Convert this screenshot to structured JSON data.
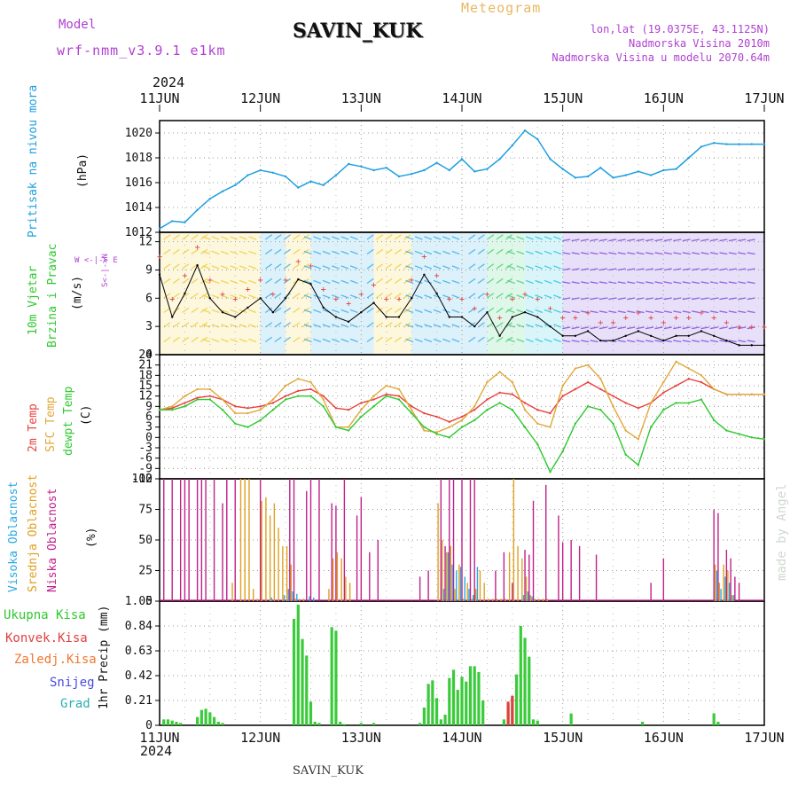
{
  "header": {
    "model_label": "Model",
    "model_name": "wrf-nmm_v3.9.1 e1km",
    "station_title": "SAVIN_KUK",
    "meteogram_label": "Meteogram",
    "lonlat": "lon,lat (19.0375E, 43.1125N)",
    "elevation": "Nadmorska Visina 2010m",
    "model_elevation": "Nadmorska Visina u modelu 2070.64m",
    "year_top": "2024",
    "year_bottom": "2024",
    "footer_station": "SAVIN_KUK",
    "credit": "made by Angel"
  },
  "colors": {
    "pressure": "#1f9fe0",
    "temp2m": "#e8413c",
    "sfc_temp": "#e0a83a",
    "dewpoint": "#2fc82f",
    "high_cloud": "#2aa8e0",
    "mid_cloud": "#e0a020",
    "low_cloud": "#c0208a",
    "total_precip": "#2fc82f",
    "conv_precip": "#e04040",
    "frozen_precip": "#f07830",
    "snow": "#4a4ae0",
    "graupel": "#2ab0b0",
    "model_label": "#b040d0",
    "meteogram_label": "#e8b860"
  },
  "labels": {
    "pressure_axis": "Pritisak na nivou mora",
    "pressure_unit": "(hPa)",
    "wind_axis1": "10m Vjetar",
    "wind_axis2": "Brzina i Pravac",
    "wind_unit": "(m/s)",
    "compass": "W <-|-> E",
    "compass_v": "S<-|->N",
    "temp_2m": "2m Temp",
    "temp_sfc": "SFC Temp",
    "temp_dew": "dewpt Temp",
    "temp_unit": "(C)",
    "cloud_high": "Visoka Oblacnost",
    "cloud_mid": "Srednja Oblacnost",
    "cloud_low": "Niska Oblacnost",
    "cloud_unit": "(%)",
    "precip_total": "Ukupna Kisa",
    "precip_conv": "Konvek.Kisa",
    "precip_frozen": "Zaledj.Kisa",
    "precip_snow": "Snijeg",
    "precip_graupel": "Grad",
    "precip_unit": "1hr Precip (mm)"
  },
  "chart_data": [
    {
      "type": "line",
      "panel": "pressure",
      "x_labels": [
        "11JUN",
        "12JUN",
        "13JUN",
        "14JUN",
        "15JUN",
        "16JUN",
        "17JUN"
      ],
      "ylim": [
        1012,
        1021
      ],
      "yticks": [
        "1012",
        "1014",
        "1016",
        "1018",
        "1020"
      ],
      "grid": true,
      "hours": [
        0,
        3,
        6,
        9,
        12,
        15,
        18,
        21,
        24,
        27,
        30,
        33,
        36,
        39,
        42,
        45,
        48,
        51,
        54,
        57,
        60,
        63,
        66,
        69,
        72,
        75,
        78,
        81,
        84,
        87,
        90,
        93,
        96,
        99,
        102,
        105,
        108,
        111,
        114,
        117,
        120,
        123,
        126,
        129,
        132,
        135,
        138,
        141,
        144
      ],
      "values": [
        1012.3,
        1012.9,
        1012.8,
        1013.8,
        1014.7,
        1015.3,
        1015.8,
        1016.6,
        1017.0,
        1016.8,
        1016.5,
        1015.6,
        1016.1,
        1015.8,
        1016.6,
        1017.5,
        1017.3,
        1017.0,
        1017.2,
        1016.5,
        1016.7,
        1017.0,
        1017.6,
        1017.0,
        1017.9,
        1016.9,
        1017.1,
        1017.9,
        1019.0,
        1020.2,
        1019.5,
        1017.9,
        1017.1,
        1016.4,
        1016.5,
        1017.2,
        1016.4,
        1016.6,
        1016.9,
        1016.6,
        1017.0,
        1017.1,
        1018.0,
        1018.9,
        1019.2,
        1019.1,
        1019.1,
        1019.1,
        1019.1
      ]
    },
    {
      "type": "line",
      "panel": "wind",
      "ylim": [
        0,
        13
      ],
      "yticks": [
        "0",
        "3",
        "6",
        "9",
        "12"
      ],
      "grid": true,
      "hours": [
        0,
        3,
        6,
        9,
        12,
        15,
        18,
        21,
        24,
        27,
        30,
        33,
        36,
        39,
        42,
        45,
        48,
        51,
        54,
        57,
        60,
        63,
        66,
        69,
        72,
        75,
        78,
        81,
        84,
        87,
        90,
        93,
        96,
        99,
        102,
        105,
        108,
        111,
        114,
        117,
        120,
        123,
        126,
        129,
        132,
        135,
        138,
        141,
        144
      ],
      "values": [
        8.5,
        4.0,
        6.5,
        9.5,
        6.0,
        4.5,
        4.0,
        5.0,
        6.0,
        4.5,
        6.0,
        8.0,
        7.5,
        5.0,
        4.0,
        3.5,
        4.5,
        5.5,
        4.0,
        4.0,
        6.0,
        8.5,
        6.5,
        4.0,
        4.0,
        3.0,
        4.5,
        2.0,
        4.0,
        4.5,
        4.0,
        3.0,
        2.0,
        2.0,
        2.5,
        1.5,
        1.5,
        2.0,
        2.5,
        2.0,
        1.5,
        2.0,
        2.0,
        2.5,
        2.0,
        1.5,
        1.0,
        1.0,
        1.0
      ]
    },
    {
      "type": "line",
      "panel": "temperature",
      "ylim": [
        -12,
        24
      ],
      "yticks": [
        "-12",
        "-9",
        "-6",
        "-3",
        "0",
        "3",
        "6",
        "9",
        "12",
        "15",
        "18",
        "21",
        "24"
      ],
      "grid": true,
      "hours": [
        0,
        3,
        6,
        9,
        12,
        15,
        18,
        21,
        24,
        27,
        30,
        33,
        36,
        39,
        42,
        45,
        48,
        51,
        54,
        57,
        60,
        63,
        66,
        69,
        72,
        75,
        78,
        81,
        84,
        87,
        90,
        93,
        96,
        99,
        102,
        105,
        108,
        111,
        114,
        117,
        120,
        123,
        126,
        129,
        132,
        135,
        138,
        141,
        144
      ],
      "series": [
        {
          "name": "2m Temp",
          "color": "#e8413c",
          "values": [
            8,
            8.5,
            10,
            11.5,
            12,
            11,
            9,
            8.5,
            9,
            10,
            12,
            13.5,
            14,
            12,
            8.5,
            8,
            10,
            11,
            12.5,
            12,
            9,
            7,
            6,
            4.5,
            6,
            8,
            11,
            13,
            12.5,
            10,
            8,
            7,
            12,
            14,
            16,
            14,
            12,
            10,
            8.5,
            10,
            13,
            15,
            17,
            16,
            14,
            12.5,
            12.5,
            12.5,
            12.5
          ]
        },
        {
          "name": "SFC Temp",
          "color": "#e0a83a",
          "values": [
            8,
            9,
            12,
            14,
            14,
            11,
            7,
            7,
            8,
            11,
            15,
            17,
            16,
            11,
            3,
            3,
            8,
            12,
            15,
            14,
            8,
            2,
            1.5,
            3,
            5,
            9,
            16,
            19,
            16,
            8,
            4,
            3,
            15,
            20,
            21,
            17,
            9,
            2,
            -0.5,
            10,
            16,
            22,
            20,
            18,
            14,
            12.5,
            12.5,
            12.5,
            12.5
          ]
        },
        {
          "name": "dewpt Temp",
          "color": "#2fc82f",
          "values": [
            8,
            8,
            9,
            11,
            11,
            8,
            4,
            3,
            5,
            8,
            11,
            12,
            12,
            9,
            3,
            2,
            6,
            9,
            12,
            11,
            7,
            3,
            1,
            0,
            3,
            5,
            8,
            10,
            8,
            3,
            -2,
            -10,
            -4,
            4,
            9,
            8,
            4,
            -5,
            -8,
            3,
            8,
            10,
            10,
            11,
            5,
            2,
            1,
            0,
            -0.5
          ]
        }
      ]
    },
    {
      "type": "bar",
      "panel": "cloud",
      "ylim": [
        0,
        100
      ],
      "yticks": [
        "0",
        "25",
        "50",
        "75",
        "100"
      ],
      "grid": true,
      "series": [
        {
          "name": "Niska Oblacnost",
          "color": "#c0208a",
          "hours": [
            1,
            3,
            5,
            6,
            7,
            9,
            10,
            11,
            13,
            15,
            16,
            18,
            24,
            31,
            32,
            35,
            36,
            38,
            41,
            42,
            44,
            47,
            48,
            50,
            52,
            62,
            64,
            67,
            68,
            69,
            70,
            72,
            74,
            75,
            80,
            82,
            84,
            87,
            88,
            89,
            92,
            95,
            96,
            98,
            100,
            104,
            117,
            120,
            132,
            133,
            135,
            136,
            137,
            138
          ],
          "values": [
            100,
            100,
            100,
            100,
            100,
            100,
            100,
            100,
            100,
            80,
            100,
            100,
            100,
            100,
            100,
            90,
            100,
            100,
            80,
            78,
            100,
            70,
            85,
            40,
            50,
            20,
            25,
            100,
            45,
            100,
            100,
            100,
            100,
            100,
            25,
            40,
            15,
            42,
            38,
            82,
            95,
            70,
            48,
            50,
            45,
            38,
            15,
            35,
            75,
            72,
            42,
            35,
            20,
            15
          ]
        },
        {
          "name": "Srednja Oblacnost",
          "color": "#e0a020",
          "hours": [
            17,
            19,
            20,
            21,
            22,
            23,
            24,
            25,
            26,
            27,
            28,
            29,
            30,
            31,
            32,
            33,
            34,
            40,
            41,
            42,
            43,
            44,
            45,
            66,
            67,
            68,
            69,
            70,
            71,
            72,
            73,
            74,
            75,
            76,
            77,
            78,
            79,
            80,
            81,
            82,
            83,
            84,
            85,
            86,
            87,
            88,
            89,
            90,
            91,
            92,
            132,
            133,
            134,
            135,
            136
          ],
          "values": [
            15,
            100,
            100,
            100,
            10,
            2,
            82,
            85,
            70,
            80,
            60,
            45,
            45,
            30,
            2,
            2,
            2,
            10,
            35,
            40,
            35,
            20,
            15,
            80,
            50,
            40,
            45,
            10,
            30,
            2,
            15,
            2,
            10,
            25,
            15,
            2,
            2,
            2,
            2,
            2,
            40,
            100,
            45,
            35,
            20,
            5,
            2,
            2,
            2,
            2,
            30,
            15,
            30,
            25,
            5
          ]
        },
        {
          "name": "Visoka Oblacnost",
          "color": "#2aa8e0",
          "hours": [
            27,
            30,
            31,
            32,
            33,
            36,
            37,
            68,
            69,
            70,
            71,
            72,
            73,
            74,
            75,
            76,
            87,
            88,
            89,
            133,
            134,
            135,
            136,
            137
          ],
          "values": [
            3,
            5,
            10,
            8,
            6,
            4,
            3,
            10,
            40,
            30,
            25,
            28,
            20,
            10,
            5,
            28,
            5,
            8,
            4,
            25,
            10,
            20,
            15,
            5
          ]
        }
      ]
    },
    {
      "type": "bar",
      "panel": "precip",
      "ylim": [
        0,
        1.05
      ],
      "yticks": [
        "0",
        "0.21",
        "0.42",
        "0.63",
        "0.84",
        "1.05"
      ],
      "grid": true,
      "series": [
        {
          "name": "Ukupna Kisa",
          "color": "#2fc82f",
          "hours": [
            1,
            2,
            3,
            4,
            5,
            9,
            10,
            11,
            12,
            13,
            14,
            15,
            32,
            33,
            34,
            35,
            36,
            37,
            38,
            41,
            42,
            43,
            44,
            48,
            51,
            62,
            63,
            64,
            65,
            66,
            67,
            68,
            69,
            70,
            71,
            72,
            73,
            74,
            75,
            76,
            77,
            82,
            83,
            84,
            85,
            86,
            87,
            88,
            89,
            90,
            98,
            115,
            132,
            133
          ],
          "values": [
            0.05,
            0.05,
            0.04,
            0.03,
            0.02,
            0.07,
            0.13,
            0.14,
            0.11,
            0.07,
            0.03,
            0.02,
            0.9,
            1.02,
            0.73,
            0.59,
            0.2,
            0.03,
            0.02,
            0.83,
            0.8,
            0.03,
            0.01,
            0.02,
            0.02,
            0.02,
            0.15,
            0.35,
            0.38,
            0.23,
            0.05,
            0.09,
            0.4,
            0.47,
            0.3,
            0.41,
            0.37,
            0.5,
            0.5,
            0.45,
            0.21,
            0.05,
            0.17,
            0.23,
            0.43,
            0.84,
            0.74,
            0.58,
            0.05,
            0.04,
            0.1,
            0.03,
            0.1,
            0.03
          ]
        },
        {
          "name": "Konvek.Kisa",
          "color": "#e04040",
          "hours": [
            83,
            84
          ],
          "values": [
            0.2,
            0.25
          ]
        },
        {
          "name": "Zaledj.Kisa",
          "color": "#f07830",
          "hours": [],
          "values": []
        },
        {
          "name": "Snijeg",
          "color": "#4a4ae0",
          "hours": [],
          "values": []
        },
        {
          "name": "Grad",
          "color": "#2ab0b0",
          "hours": [],
          "values": []
        }
      ]
    }
  ]
}
